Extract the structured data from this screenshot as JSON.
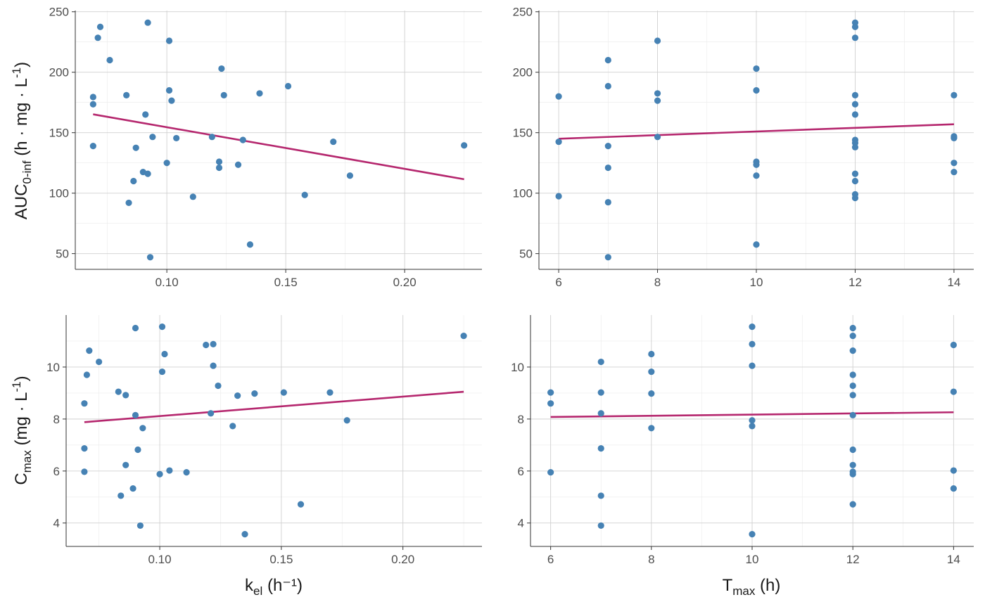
{
  "colors": {
    "point": "#4682B4",
    "trend": "#B5276E"
  },
  "axis_titles": {
    "auc_main": "AUC",
    "auc_sub": "0-inf",
    "auc_unit": " (h · mg · L",
    "auc_sup": "-1",
    "auc_close": ")",
    "cmax_main": "C",
    "cmax_sub": "max",
    "cmax_unit": " (mg · L",
    "cmax_sup": "-1",
    "cmax_close": ")",
    "kel_main": "k",
    "kel_sub": "el",
    "kel_unit": " (h⁻¹)",
    "tmax_main": "T",
    "tmax_sub": "max",
    "tmax_unit": " (h)"
  },
  "chart_data": [
    {
      "type": "scatter",
      "panel": "top-left",
      "xlabel": "kel (h⁻¹)",
      "ylabel": "AUC0-inf (h · mg · L-1)",
      "xlim": [
        0.0615,
        0.2325
      ],
      "ylim": [
        37,
        251
      ],
      "xticks": [
        0.1,
        0.15,
        0.2
      ],
      "xtick_labels": [
        "0.10",
        "0.15",
        "0.20"
      ],
      "yticks": [
        50,
        100,
        150,
        200,
        250
      ],
      "ytick_labels": [
        "50",
        "100",
        "150",
        "200",
        "250"
      ],
      "x": [
        0.069,
        0.069,
        0.069,
        0.071,
        0.072,
        0.076,
        0.083,
        0.084,
        0.086,
        0.087,
        0.09,
        0.091,
        0.092,
        0.092,
        0.093,
        0.094,
        0.1,
        0.101,
        0.101,
        0.102,
        0.104,
        0.111,
        0.119,
        0.122,
        0.122,
        0.123,
        0.124,
        0.13,
        0.132,
        0.135,
        0.139,
        0.151,
        0.158,
        0.17,
        0.177,
        0.225
      ],
      "y": [
        179.5,
        173.5,
        139,
        228.5,
        237.5,
        210,
        181,
        92,
        110,
        137.5,
        117.5,
        165,
        116,
        241,
        47,
        146.5,
        125,
        185,
        226,
        176.5,
        145.5,
        97,
        146.5,
        121,
        126,
        203,
        181,
        123.5,
        144,
        57.5,
        182.5,
        188.5,
        98.5,
        142.5,
        114.5,
        139.5
      ],
      "trend": {
        "x": [
          0.069,
          0.225
        ],
        "y": [
          165.2,
          111.5
        ]
      }
    },
    {
      "type": "scatter",
      "panel": "top-right",
      "xlabel": "Tmax (h)",
      "ylabel": "",
      "xlim": [
        5.6,
        14.4
      ],
      "ylim": [
        37,
        251
      ],
      "xticks": [
        6,
        8,
        10,
        12,
        14
      ],
      "xtick_labels": [
        "6",
        "8",
        "10",
        "12",
        "14"
      ],
      "yticks": [
        50,
        100,
        150,
        200,
        250
      ],
      "ytick_labels": [
        "50",
        "100",
        "150",
        "200",
        "250"
      ],
      "x": [
        6,
        6,
        6,
        7,
        7,
        7,
        7,
        7,
        7,
        8,
        8,
        8,
        8,
        10,
        10,
        10,
        10,
        10,
        10,
        12,
        12,
        12,
        12,
        12,
        12,
        12,
        12,
        12,
        12,
        12,
        12,
        12,
        14,
        14,
        14,
        14,
        14,
        14
      ],
      "y": [
        180,
        142.5,
        97.5,
        210,
        188.5,
        139,
        121,
        92.5,
        47,
        226,
        182.5,
        176.5,
        146.5,
        203,
        185,
        126,
        123.5,
        114.5,
        57.5,
        241,
        237.5,
        228.5,
        181,
        173.5,
        165,
        144,
        141.5,
        138,
        116,
        110,
        99,
        96,
        181,
        147,
        145.5,
        125,
        117.5,
        146
      ],
      "trend": {
        "x": [
          6,
          14
        ],
        "y": [
          145,
          157
        ]
      }
    },
    {
      "type": "scatter",
      "panel": "bottom-left",
      "xlabel": "kel (h⁻¹)",
      "ylabel": "Cmax (mg · L-1)",
      "xlim": [
        0.0615,
        0.2325
      ],
      "ylim": [
        3.1,
        12.0
      ],
      "xticks": [
        0.1,
        0.15,
        0.2
      ],
      "xtick_labels": [
        "0.10",
        "0.15",
        "0.20"
      ],
      "yticks": [
        4,
        6,
        8,
        10
      ],
      "ytick_labels": [
        "4",
        "6",
        "8",
        "10"
      ],
      "x": [
        0.069,
        0.069,
        0.069,
        0.07,
        0.071,
        0.075,
        0.083,
        0.084,
        0.086,
        0.086,
        0.089,
        0.09,
        0.09,
        0.091,
        0.092,
        0.093,
        0.1,
        0.101,
        0.101,
        0.102,
        0.104,
        0.111,
        0.119,
        0.121,
        0.122,
        0.122,
        0.124,
        0.13,
        0.132,
        0.135,
        0.139,
        0.151,
        0.158,
        0.17,
        0.177,
        0.225
      ],
      "y": [
        8.6,
        6.87,
        5.97,
        9.7,
        10.63,
        10.2,
        9.05,
        5.05,
        6.23,
        8.92,
        5.33,
        8.15,
        11.5,
        6.82,
        3.9,
        7.65,
        5.88,
        9.82,
        11.55,
        10.5,
        6.02,
        5.95,
        10.85,
        8.22,
        10.05,
        10.88,
        9.28,
        7.73,
        8.9,
        3.57,
        8.98,
        9.02,
        4.72,
        9.02,
        7.95,
        11.2
      ],
      "trend": {
        "x": [
          0.069,
          0.225
        ],
        "y": [
          7.88,
          9.05
        ]
      }
    },
    {
      "type": "scatter",
      "panel": "bottom-right",
      "xlabel": "Tmax (h)",
      "ylabel": "",
      "xlim": [
        5.6,
        14.4
      ],
      "ylim": [
        3.1,
        12.0
      ],
      "xticks": [
        6,
        8,
        10,
        12,
        14
      ],
      "xtick_labels": [
        "6",
        "8",
        "10",
        "12",
        "14"
      ],
      "yticks": [
        4,
        6,
        8,
        10
      ],
      "ytick_labels": [
        "4",
        "6",
        "8",
        "10"
      ],
      "x": [
        6,
        6,
        6,
        7,
        7,
        7,
        7,
        7,
        7,
        8,
        8,
        8,
        8,
        10,
        10,
        10,
        10,
        10,
        10,
        12,
        12,
        12,
        12,
        12,
        12,
        12,
        12,
        12,
        12,
        12,
        12,
        14,
        14,
        14,
        14
      ],
      "y": [
        9.02,
        8.6,
        5.95,
        10.2,
        9.02,
        8.22,
        6.87,
        5.05,
        3.9,
        10.5,
        9.82,
        8.98,
        7.65,
        11.55,
        10.88,
        10.05,
        7.95,
        7.73,
        3.57,
        11.5,
        11.2,
        10.63,
        9.7,
        9.28,
        8.92,
        8.15,
        6.82,
        6.23,
        5.97,
        4.72,
        5.88,
        10.85,
        9.05,
        6.02,
        5.33
      ],
      "trend": {
        "x": [
          6,
          14
        ],
        "y": [
          8.08,
          8.26
        ]
      }
    }
  ]
}
